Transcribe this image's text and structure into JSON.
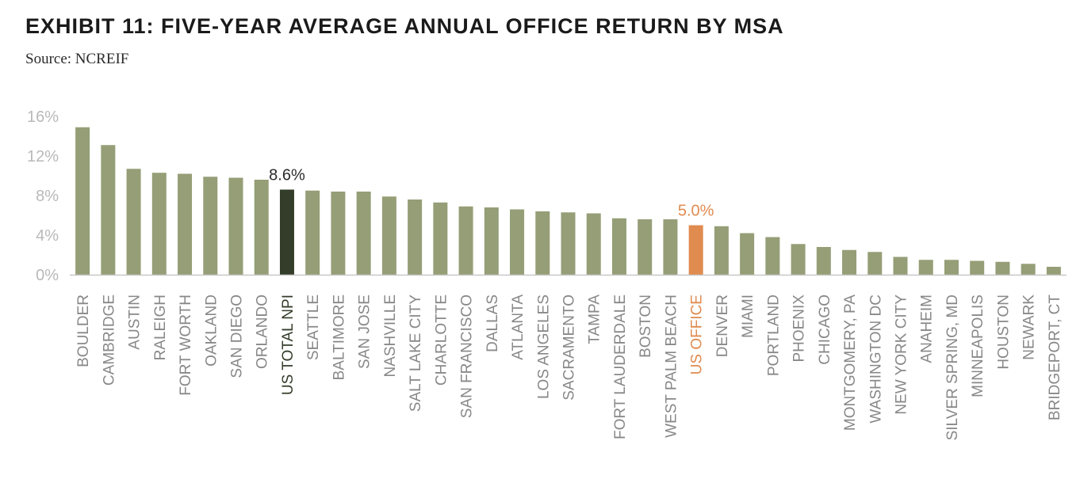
{
  "header": {
    "title": "EXHIBIT 11: FIVE-YEAR AVERAGE ANNUAL OFFICE RETURN BY MSA",
    "source": "Source: NCREIF"
  },
  "chart_data": {
    "type": "bar",
    "title": "EXHIBIT 11: FIVE-YEAR AVERAGE ANNUAL OFFICE RETURN BY MSA",
    "subtitle": "Source: NCREIF",
    "xlabel": "",
    "ylabel": "",
    "ylim": [
      0,
      16
    ],
    "yticks": [
      0,
      4,
      8,
      12,
      16
    ],
    "ytick_labels": [
      "0%",
      "4%",
      "8%",
      "12%",
      "16%"
    ],
    "grid": false,
    "colors": {
      "default": "#959e76",
      "us_total_npi": "#333d2a",
      "us_office": "#e08b4f",
      "axis": "#c8c8c8",
      "label": "#888888"
    },
    "categories": [
      "BOULDER",
      "CAMBRIDGE",
      "AUSTIN",
      "RALEIGH",
      "FORT WORTH",
      "OAKLAND",
      "SAN DIEGO",
      "ORLANDO",
      "US TOTAL NPI",
      "SEATTLE",
      "BALTIMORE",
      "SAN JOSE",
      "NASHVILLE",
      "SALT LAKE CITY",
      "CHARLOTTE",
      "SAN FRANCISCO",
      "DALLAS",
      "ATLANTA",
      "LOS ANGELES",
      "SACRAMENTO",
      "TAMPA",
      "FORT LAUDERDALE",
      "BOSTON",
      "WEST PALM BEACH",
      "US OFFICE",
      "DENVER",
      "MIAMI",
      "PORTLAND",
      "PHOENIX",
      "CHICAGO",
      "MONTGOMERY, PA",
      "WASHINGTON DC",
      "NEW YORK CITY",
      "ANAHEIM",
      "SILVER SPRING, MD",
      "MINNEAPOLIS",
      "HOUSTON",
      "NEWARK",
      "BRIDGEPORT, CT"
    ],
    "values": [
      14.9,
      13.1,
      10.7,
      10.3,
      10.2,
      9.9,
      9.8,
      9.6,
      8.6,
      8.5,
      8.4,
      8.4,
      7.9,
      7.6,
      7.3,
      6.9,
      6.8,
      6.6,
      6.4,
      6.3,
      6.2,
      5.7,
      5.6,
      5.6,
      5.0,
      4.9,
      4.2,
      3.8,
      3.1,
      2.8,
      2.5,
      2.3,
      1.8,
      1.5,
      1.5,
      1.4,
      1.3,
      1.1,
      0.8
    ],
    "highlights": [
      {
        "category": "US TOTAL NPI",
        "label": "8.6%",
        "color": "#333d2a"
      },
      {
        "category": "US OFFICE",
        "label": "5.0%",
        "color": "#e08b4f"
      }
    ]
  }
}
